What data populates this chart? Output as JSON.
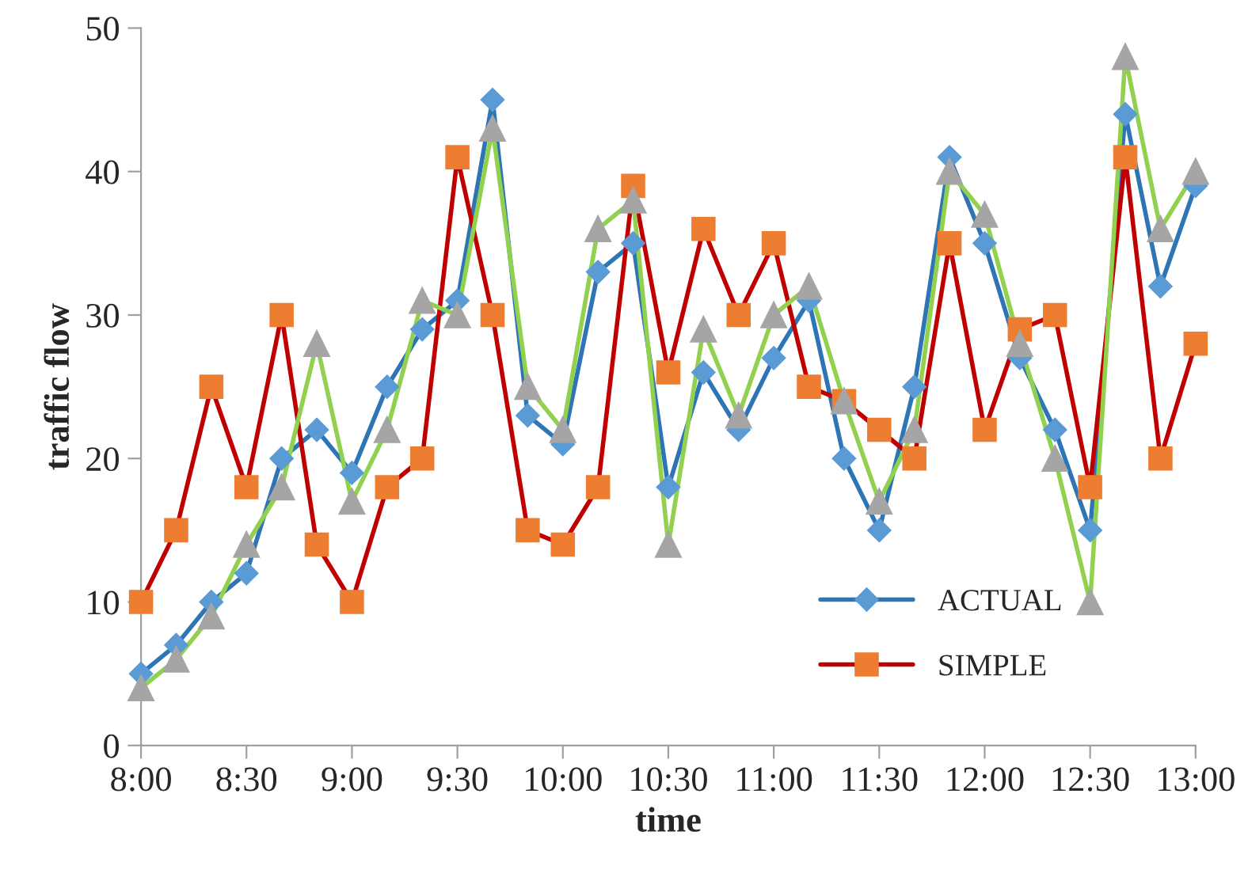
{
  "chart_data": {
    "type": "line",
    "xlabel": "time",
    "ylabel": "traffic flow",
    "x": [
      8.0,
      8.1667,
      8.3333,
      8.5,
      8.6667,
      8.8333,
      9.0,
      9.1667,
      9.3333,
      9.5,
      9.6667,
      9.8333,
      10.0,
      10.1667,
      10.3333,
      10.5,
      10.6667,
      10.8333,
      11.0,
      11.1667,
      11.3333,
      11.5,
      11.6667,
      11.8333,
      12.0,
      12.1667,
      12.3333,
      12.5,
      12.6667,
      12.8333,
      13.0
    ],
    "xlim": [
      8,
      13
    ],
    "xticks": [
      {
        "value": 8,
        "label": "8:00"
      },
      {
        "value": 8.5,
        "label": "8:30"
      },
      {
        "value": 9,
        "label": "9:00"
      },
      {
        "value": 9.5,
        "label": "9:30"
      },
      {
        "value": 10,
        "label": "10:00"
      },
      {
        "value": 10.5,
        "label": "10:30"
      },
      {
        "value": 11,
        "label": "11:00"
      },
      {
        "value": 11.5,
        "label": "11:30"
      },
      {
        "value": 12,
        "label": "12:00"
      },
      {
        "value": 12.5,
        "label": "12:30"
      },
      {
        "value": 13,
        "label": "13:00"
      }
    ],
    "ylim": [
      0,
      50
    ],
    "yticks": [
      0,
      10,
      20,
      30,
      40,
      50
    ],
    "grid": false,
    "legend": "bottom right",
    "line_style": "solid",
    "series": [
      {
        "name": "ACTUAL",
        "color": "#2e75b6",
        "colors": [
          "#5b9bd5",
          "#5b9bd5",
          "#5b9bd5",
          "#5b9bd5",
          "#5b9bd5",
          "#5b9bd5",
          "#5b9bd5",
          "#5b9bd5",
          "#5b9bd5",
          "#5b9bd5",
          "#5b9bd5",
          "#5b9bd5",
          "#5b9bd5",
          "#5b9bd5",
          "#5b9bd5",
          "#5b9bd5",
          "#5b9bd5",
          "#5b9bd5",
          "#5b9bd5",
          "#5b9bd5",
          "#5b9bd5",
          "#5b9bd5",
          "#5b9bd5",
          "#5b9bd5",
          "#5b9bd5",
          "#5b9bd5",
          "#5b9bd5",
          "#5b9bd5",
          "#5b9bd5",
          "#5b9bd5",
          "#5b9bd5"
        ],
        "marker": "diamond",
        "values": [
          5,
          7,
          10,
          12,
          20,
          22,
          19,
          25,
          29,
          31,
          45,
          23,
          21,
          33,
          35,
          18,
          26,
          22,
          27,
          31,
          20,
          15,
          25,
          41,
          35,
          27,
          22,
          15,
          44,
          32,
          39
        ]
      },
      {
        "name": "SIMPLE",
        "color": "#c00000",
        "colors": [
          "#ed7d31",
          "#ed7d31",
          "#ed7d31",
          "#ed7d31",
          "#ed7d31",
          "#ed7d31",
          "#ed7d31",
          "#ed7d31",
          "#ed7d31",
          "#ed7d31",
          "#ed7d31",
          "#ed7d31",
          "#ed7d31",
          "#ed7d31",
          "#ed7d31",
          "#ed7d31",
          "#ed7d31",
          "#ed7d31",
          "#ed7d31",
          "#ed7d31",
          "#ed7d31",
          "#ed7d31",
          "#ed7d31",
          "#ed7d31",
          "#ed7d31",
          "#ed7d31",
          "#ed7d31",
          "#ed7d31",
          "#ed7d31",
          "#ed7d31",
          "#ed7d31"
        ],
        "marker": "square",
        "values": [
          10,
          15,
          25,
          18,
          30,
          14,
          10,
          18,
          20,
          41,
          30,
          15,
          14,
          18,
          39,
          26,
          36,
          30,
          35,
          25,
          24,
          22,
          20,
          35,
          22,
          29,
          30,
          18,
          41,
          20,
          28
        ]
      },
      {
        "color": "#92d050",
        "colors": [
          "#a5a5a5",
          "#a5a5a5",
          "#a5a5a5",
          "#a5a5a5",
          "#a5a5a5",
          "#a5a5a5",
          "#a5a5a5",
          "#a5a5a5",
          "#a5a5a5",
          "#a5a5a5",
          "#a5a5a5",
          "#a5a5a5",
          "#a5a5a5",
          "#a5a5a5",
          "#a5a5a5",
          "#a5a5a5",
          "#a5a5a5",
          "#a5a5a5",
          "#a5a5a5",
          "#a5a5a5",
          "#a5a5a5",
          "#a5a5a5",
          "#a5a5a5",
          "#a5a5a5",
          "#a5a5a5",
          "#a5a5a5",
          "#a5a5a5",
          "#a5a5a5",
          "#a5a5a5",
          "#a5a5a5",
          "#a5a5a5"
        ],
        "marker": "triangle",
        "values": [
          4,
          6,
          9,
          14,
          18,
          28,
          17,
          22,
          31,
          30,
          43,
          25,
          22,
          36,
          38,
          14,
          29,
          23,
          30,
          32,
          24,
          17,
          22,
          40,
          37,
          28,
          20,
          10,
          48,
          36,
          40
        ]
      }
    ]
  }
}
